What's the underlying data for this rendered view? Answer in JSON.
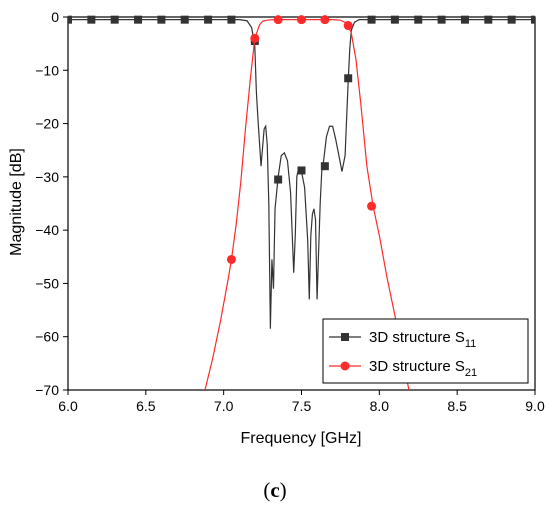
{
  "caption": {
    "open": "(",
    "letter": "c",
    "close": ")"
  },
  "chart_data": {
    "type": "line",
    "xlabel": "Frequency [GHz]",
    "ylabel": "Magnitude [dB]",
    "xlim": [
      6.0,
      9.0
    ],
    "ylim": [
      -70,
      0
    ],
    "xticks": [
      6.0,
      6.5,
      7.0,
      7.5,
      8.0,
      8.5,
      9.0
    ],
    "xtick_labels": [
      "6.0",
      "6.5",
      "7.0",
      "7.5",
      "8.0",
      "8.5",
      "9.0"
    ],
    "yticks": [
      0,
      -10,
      -20,
      -30,
      -40,
      -50,
      -60,
      -70
    ],
    "ytick_labels": [
      "0",
      "−10",
      "−20",
      "−30",
      "−40",
      "−50",
      "−60",
      "−70"
    ],
    "grid": false,
    "legend_position": "bottom-right",
    "series": [
      {
        "name_main": "3D structure S",
        "name_sub": "11",
        "color": "#333333",
        "marker": "square",
        "x": [
          6.0,
          6.5,
          7.0,
          7.1,
          7.15,
          7.18,
          7.2,
          7.21,
          7.22,
          7.24,
          7.26,
          7.27,
          7.28,
          7.29,
          7.3,
          7.31,
          7.32,
          7.33,
          7.35,
          7.37,
          7.39,
          7.41,
          7.43,
          7.45,
          7.46,
          7.47,
          7.48,
          7.5,
          7.52,
          7.54,
          7.55,
          7.56,
          7.57,
          7.58,
          7.59,
          7.6,
          7.61,
          7.62,
          7.63,
          7.64,
          7.66,
          7.68,
          7.7,
          7.72,
          7.74,
          7.76,
          7.78,
          7.79,
          7.8,
          7.81,
          7.82,
          7.84,
          7.87,
          7.95,
          8.5,
          9.0
        ],
        "y": [
          -0.5,
          -0.5,
          -0.5,
          -0.5,
          -0.7,
          -2.0,
          -5.5,
          -14.0,
          -19.0,
          -28.0,
          -21.0,
          -20.5,
          -24.0,
          -35.0,
          -58.5,
          -45.5,
          -51.0,
          -36.0,
          -30.0,
          -26.0,
          -25.5,
          -27.0,
          -33.0,
          -48.0,
          -41.0,
          -30.0,
          -28.5,
          -29.0,
          -32.0,
          -42.0,
          -53.0,
          -41.0,
          -37.0,
          -36.0,
          -38.0,
          -53.0,
          -44.0,
          -35.0,
          -29.0,
          -27.5,
          -22.5,
          -20.5,
          -20.5,
          -23.0,
          -26.0,
          -29.0,
          -26.0,
          -19.0,
          -12.0,
          -6.0,
          -2.5,
          -1.0,
          -0.5,
          -0.5,
          -0.5,
          -0.5
        ],
        "markers_x": [
          6.0,
          6.15,
          6.3,
          6.45,
          6.6,
          6.75,
          6.9,
          7.05,
          7.2,
          7.35,
          7.5,
          7.65,
          7.8,
          7.95,
          8.1,
          8.25,
          8.4,
          8.55,
          8.7,
          8.85,
          9.0
        ],
        "markers_y": [
          -0.5,
          -0.5,
          -0.5,
          -0.5,
          -0.5,
          -0.5,
          -0.5,
          -0.5,
          -4.5,
          -30.5,
          -28.8,
          -28.0,
          -11.5,
          -0.5,
          -0.5,
          -0.5,
          -0.5,
          -0.5,
          -0.5,
          -0.5,
          -0.5
        ]
      },
      {
        "name_main": "3D structure S",
        "name_sub": "21",
        "color": "#ff2a2a",
        "marker": "circle",
        "x": [
          6.88,
          6.93,
          6.98,
          7.03,
          7.05,
          7.08,
          7.11,
          7.14,
          7.17,
          7.2,
          7.23,
          7.25,
          7.28,
          7.32,
          7.4,
          7.5,
          7.6,
          7.7,
          7.75,
          7.78,
          7.8,
          7.82,
          7.85,
          7.88,
          7.92,
          7.96,
          8.0,
          8.05,
          8.1,
          8.15,
          8.19
        ],
        "y": [
          -70.0,
          -64.0,
          -57.0,
          -49.0,
          -45.5,
          -39.0,
          -31.0,
          -21.0,
          -12.0,
          -4.0,
          -1.5,
          -0.8,
          -0.6,
          -0.5,
          -0.5,
          -0.5,
          -0.5,
          -0.5,
          -0.6,
          -1.0,
          -1.6,
          -3.0,
          -8.0,
          -16.0,
          -28.0,
          -35.5,
          -41.0,
          -49.0,
          -56.0,
          -64.0,
          -70.0
        ],
        "markers_x": [
          7.05,
          7.2,
          7.35,
          7.5,
          7.65,
          7.8,
          7.95
        ],
        "markers_y": [
          -45.5,
          -4.0,
          -0.5,
          -0.5,
          -0.5,
          -1.6,
          -35.5
        ]
      }
    ]
  }
}
